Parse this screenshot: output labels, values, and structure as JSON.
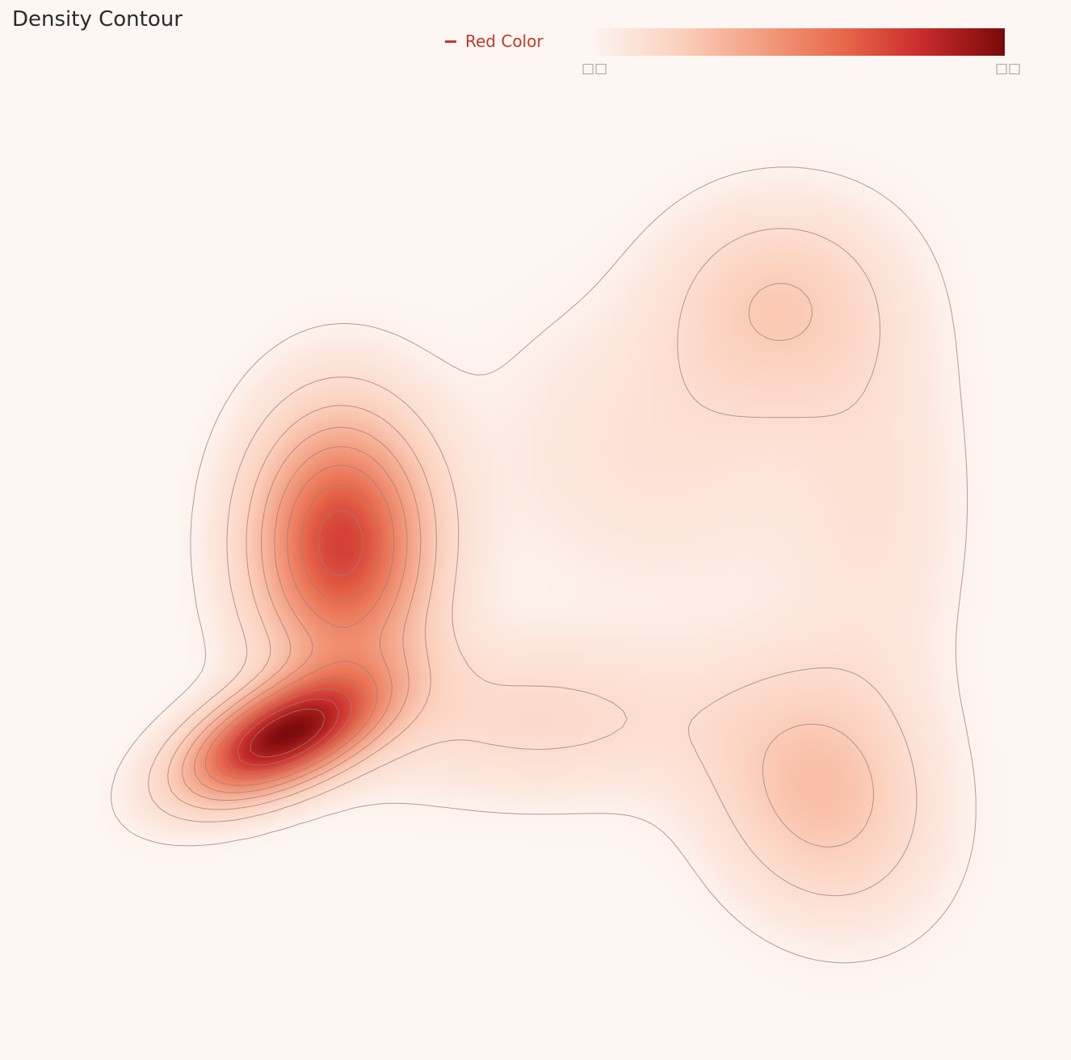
{
  "chart_data": {
    "type": "heatmap",
    "subtype": "density-contour",
    "title": "Density Contour",
    "legend": {
      "placement": "top-center",
      "entries": [
        {
          "name": "Red Color",
          "color": "#c0392b"
        }
      ]
    },
    "colorbar": {
      "placement": "top-right",
      "orientation": "horizontal",
      "colorscale": "Reds",
      "min_label": "□□",
      "max_label": "□□"
    },
    "colorscale_stops": [
      "#fdf3ef",
      "#fcd2bf",
      "#f4a083",
      "#e96a4c",
      "#c92b2c",
      "#7a0a0a"
    ],
    "axes_visible": false,
    "grid": false,
    "contour_levels": 10,
    "contour_color": "#9a7f7f",
    "density_components": [
      {
        "x": 0.245,
        "y": 0.69,
        "weight": 0.64,
        "sx": 0.065,
        "sy": 0.045,
        "rho": -0.55
      },
      {
        "x": 0.305,
        "y": 0.48,
        "weight": 0.5,
        "sx": 0.06,
        "sy": 0.095,
        "rho": 0.0
      },
      {
        "x": 0.78,
        "y": 0.75,
        "weight": 0.18,
        "sx": 0.075,
        "sy": 0.09,
        "rho": 0.15
      },
      {
        "x": 0.74,
        "y": 0.22,
        "weight": 0.14,
        "sx": 0.075,
        "sy": 0.075,
        "rho": 0.0
      },
      {
        "x": 0.5,
        "y": 0.67,
        "weight": 0.1,
        "sx": 0.13,
        "sy": 0.06,
        "rho": 0.0
      },
      {
        "x": 0.62,
        "y": 0.38,
        "weight": 0.07,
        "sx": 0.12,
        "sy": 0.11,
        "rho": 0.0
      },
      {
        "x": 0.84,
        "y": 0.45,
        "weight": 0.06,
        "sx": 0.06,
        "sy": 0.16,
        "rho": 0.0
      }
    ]
  }
}
